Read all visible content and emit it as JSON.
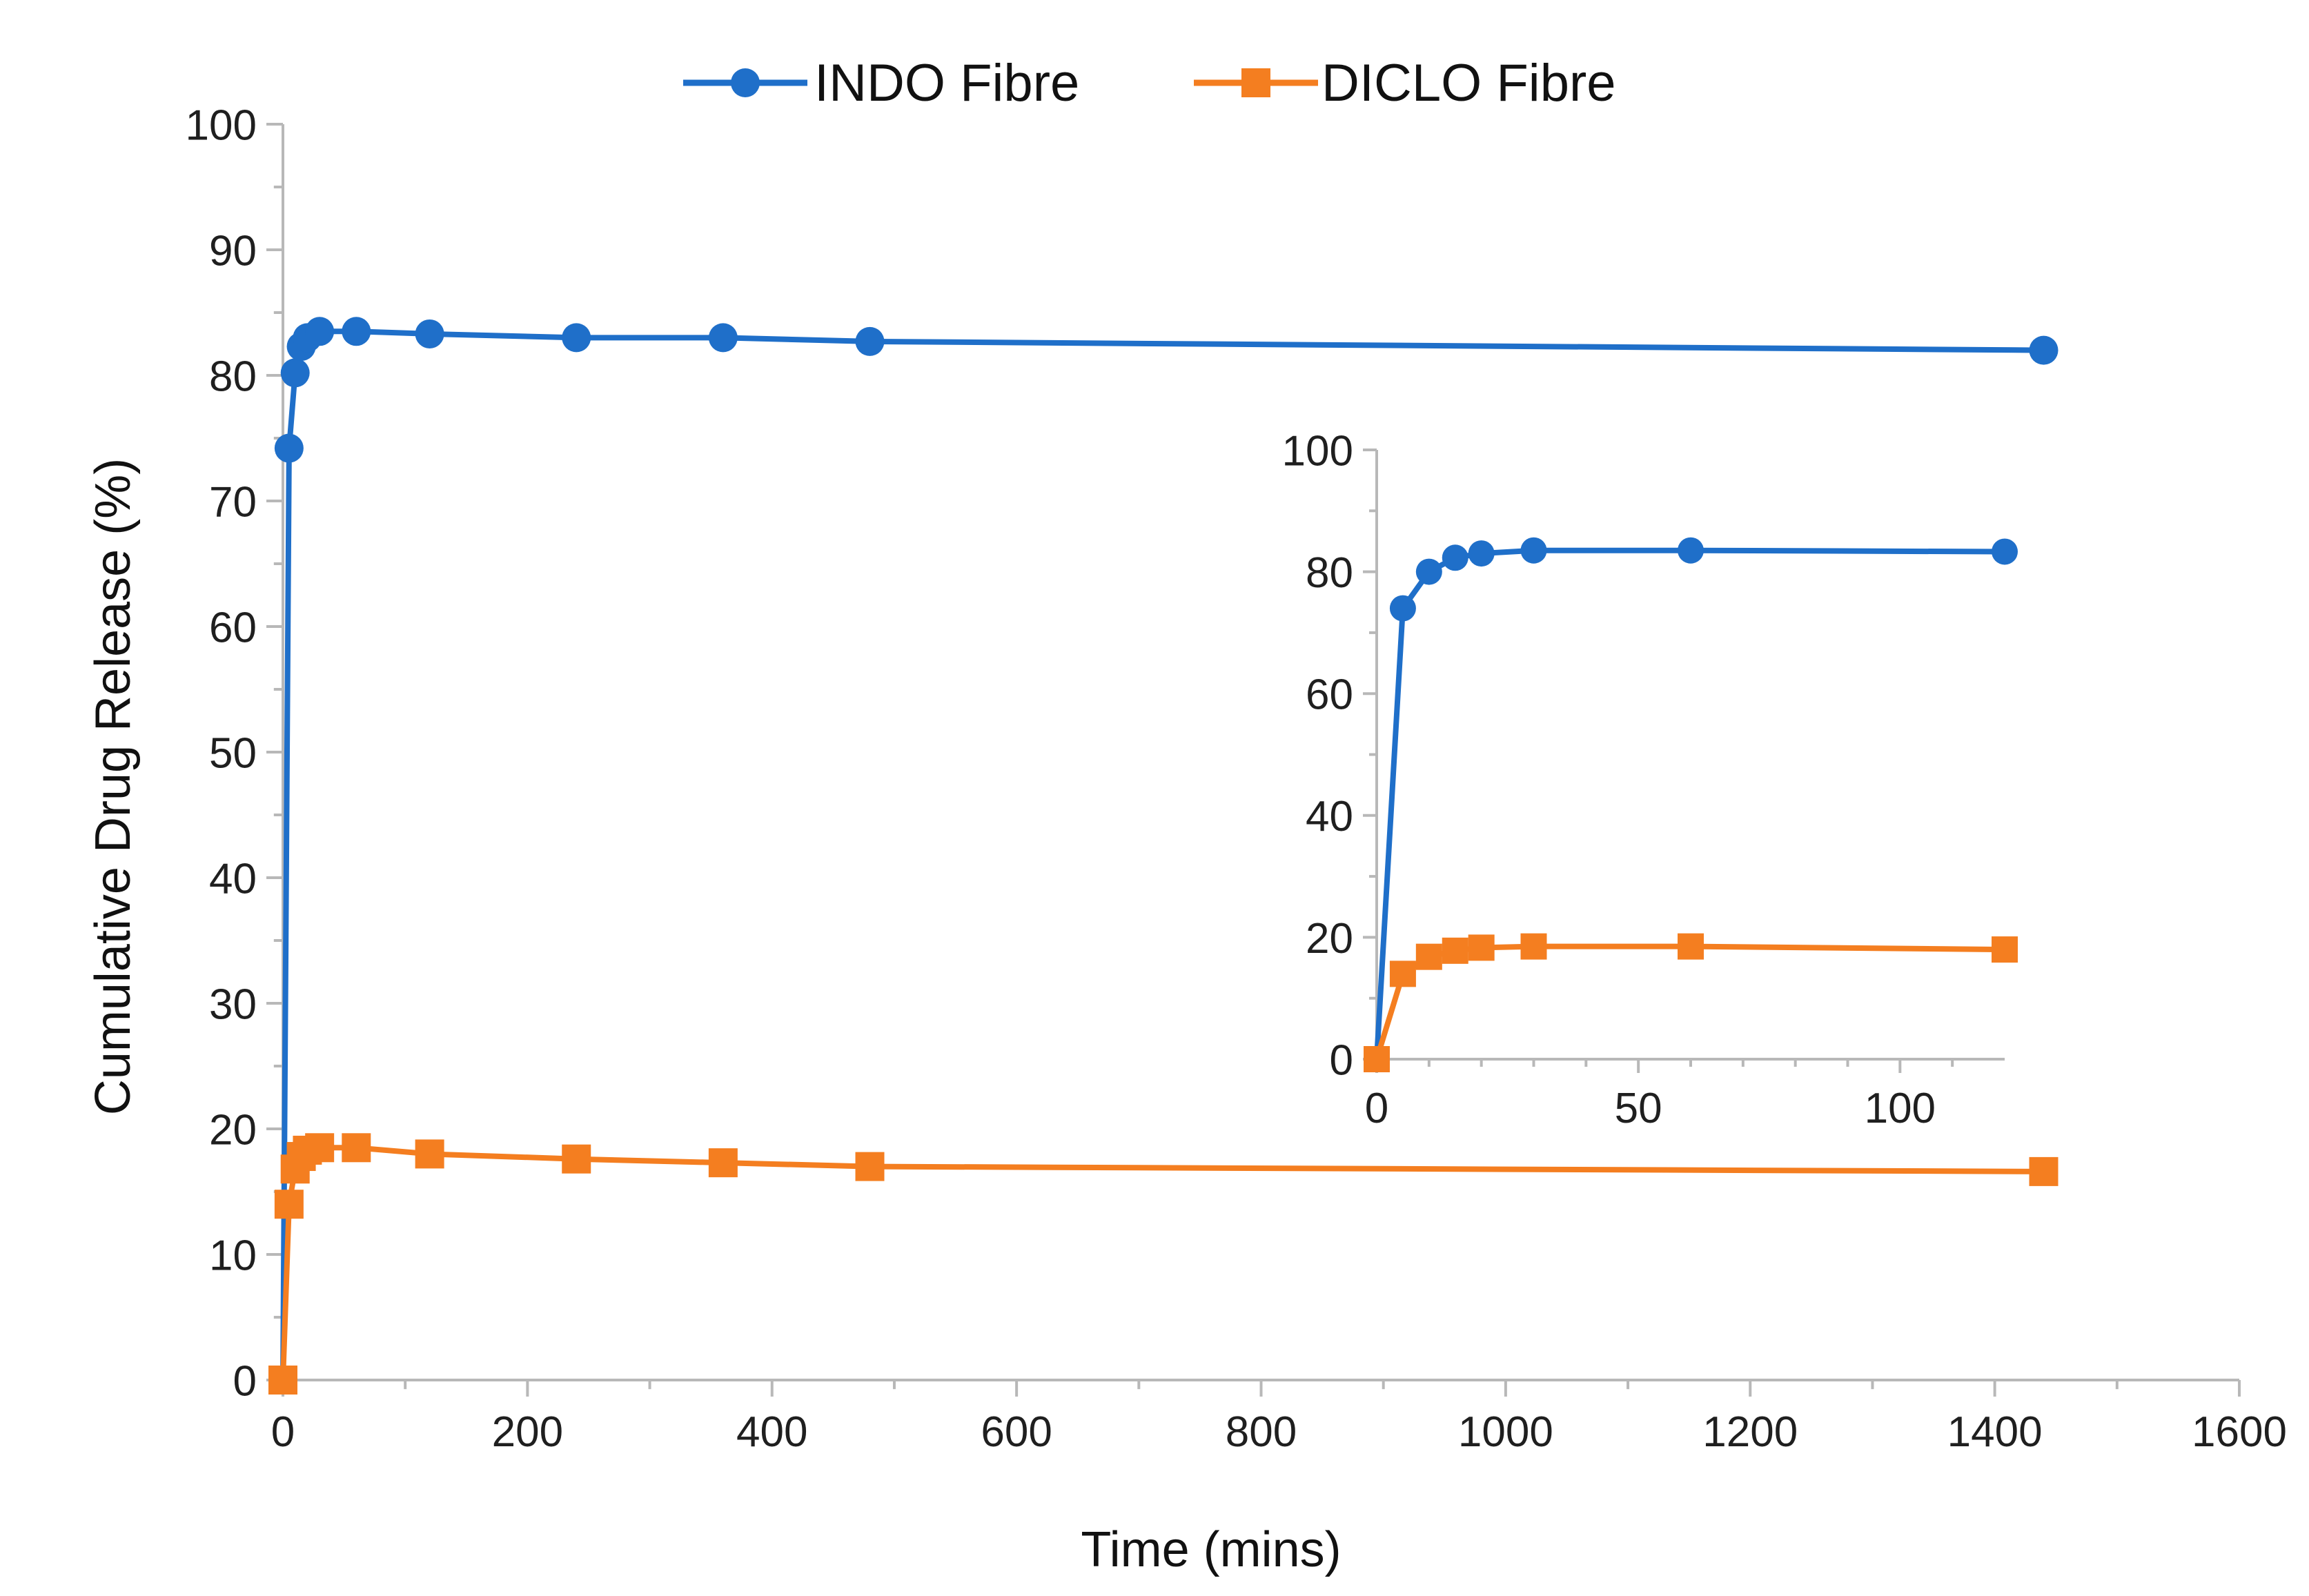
{
  "chart_data": [
    {
      "type": "line",
      "role": "main",
      "title": "",
      "xlabel": "Time (mins)",
      "ylabel": "Cumulative Drug Release (%)",
      "xlim": [
        0,
        1600
      ],
      "ylim": [
        0,
        100
      ],
      "xticks": [
        0,
        200,
        400,
        600,
        800,
        1000,
        1200,
        1400,
        1600
      ],
      "yticks": [
        0,
        10,
        20,
        30,
        40,
        50,
        60,
        70,
        80,
        90,
        100
      ],
      "grid": false,
      "legend_position": "top-center",
      "series": [
        {
          "name": "INDO Fibre",
          "color": "#1F6FC9",
          "marker": "circle",
          "x": [
            0,
            5,
            10,
            15,
            20,
            30,
            60,
            120,
            240,
            360,
            480,
            1440
          ],
          "y": [
            0,
            74.2,
            80.2,
            82.3,
            83.0,
            83.5,
            83.5,
            83.3,
            83.0,
            83.0,
            82.7,
            82.0
          ]
        },
        {
          "name": "DICLO Fibre",
          "color": "#F47E20",
          "marker": "square",
          "x": [
            0,
            5,
            10,
            15,
            20,
            30,
            60,
            120,
            240,
            360,
            480,
            1440
          ],
          "y": [
            0,
            14.0,
            16.8,
            17.8,
            18.3,
            18.5,
            18.5,
            18.0,
            17.6,
            17.3,
            17.0,
            16.6
          ]
        }
      ]
    },
    {
      "type": "line",
      "role": "inset",
      "title": "",
      "xlabel": "",
      "ylabel": "",
      "xlim": [
        0,
        120
      ],
      "ylim": [
        0,
        100
      ],
      "xticks": [
        0,
        50,
        100
      ],
      "yticks": [
        0,
        20,
        40,
        60,
        80,
        100
      ],
      "grid": false,
      "series": [
        {
          "name": "INDO Fibre",
          "color": "#1F6FC9",
          "marker": "circle",
          "x": [
            0,
            5,
            10,
            15,
            20,
            30,
            60,
            120
          ],
          "y": [
            0,
            74.0,
            80.0,
            82.3,
            83.0,
            83.5,
            83.5,
            83.3
          ]
        },
        {
          "name": "DICLO Fibre",
          "color": "#F47E20",
          "marker": "square",
          "x": [
            0,
            5,
            10,
            15,
            20,
            30,
            60,
            120
          ],
          "y": [
            0,
            14.0,
            16.8,
            17.8,
            18.3,
            18.5,
            18.5,
            18.0
          ]
        }
      ]
    }
  ]
}
